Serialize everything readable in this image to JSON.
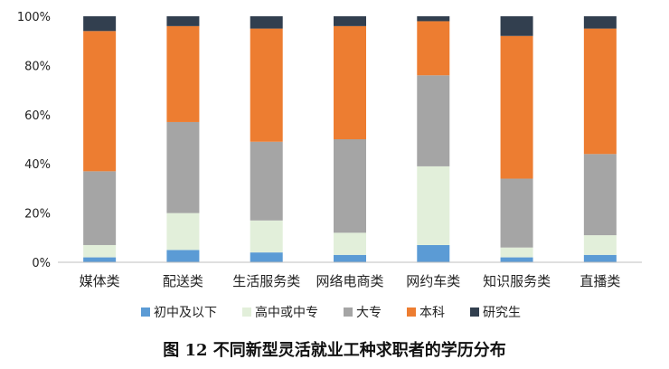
{
  "chart_data": {
    "type": "bar",
    "stacked": true,
    "normalized": true,
    "categories": [
      "媒体类",
      "配送类",
      "生活服务类",
      "网络电商类",
      "网约车类",
      "知识服务类",
      "直播类"
    ],
    "series": [
      {
        "name": "初中及以下",
        "color": "#5b9bd5",
        "values": [
          2,
          5,
          4,
          3,
          7,
          2,
          3
        ]
      },
      {
        "name": "高中或中专",
        "color": "#e2efda",
        "values": [
          5,
          15,
          13,
          9,
          32,
          4,
          8
        ]
      },
      {
        "name": "大专",
        "color": "#a5a5a5",
        "values": [
          30,
          37,
          32,
          38,
          37,
          28,
          33
        ]
      },
      {
        "name": "本科",
        "color": "#ed7d31",
        "values": [
          57,
          39,
          46,
          46,
          22,
          58,
          51
        ]
      },
      {
        "name": "研究生",
        "color": "#323f4f",
        "values": [
          6,
          4,
          5,
          4,
          2,
          8,
          5
        ]
      }
    ],
    "y_ticks": [
      "0%",
      "20%",
      "40%",
      "60%",
      "80%",
      "100%"
    ],
    "ylim": [
      0,
      100
    ],
    "grid": false,
    "legend_position": "bottom"
  },
  "caption": "图 12 不同新型灵活就业工种求职者的学历分布"
}
